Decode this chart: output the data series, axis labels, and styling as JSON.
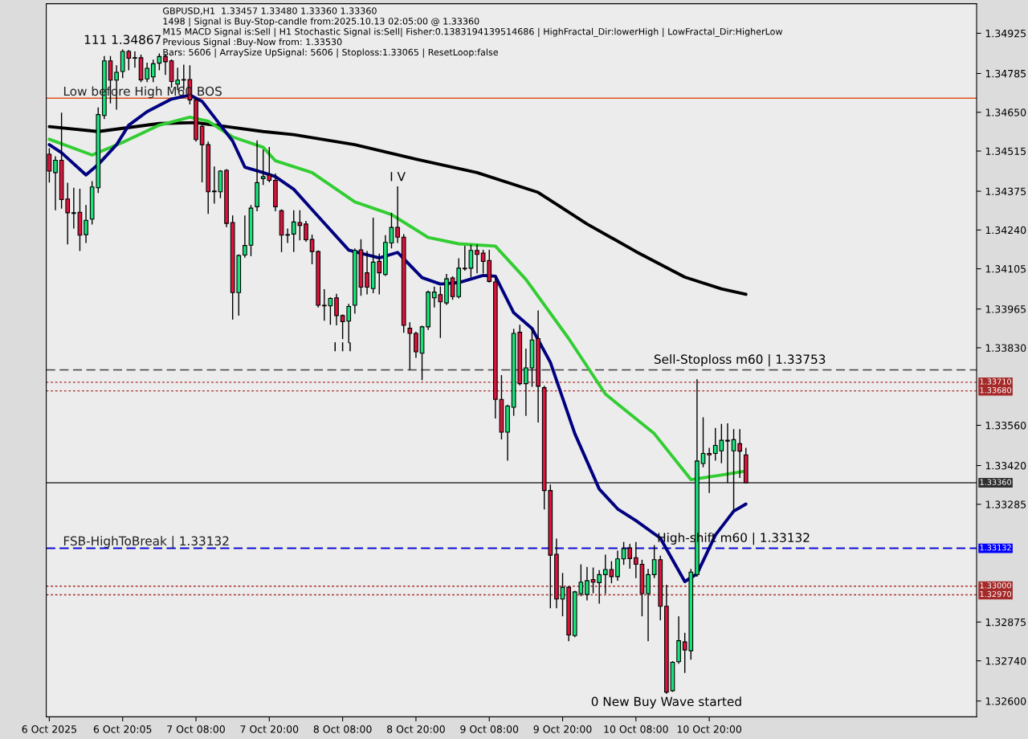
{
  "chart_data": {
    "type": "candlestick",
    "x": [
      "2025-10-06T08:00",
      "2025-10-06T09:00",
      "2025-10-06T10:00",
      "2025-10-06T11:00",
      "2025-10-06T12:00",
      "2025-10-06T13:00",
      "2025-10-06T14:00",
      "2025-10-06T15:00",
      "2025-10-06T16:00",
      "2025-10-06T17:00",
      "2025-10-06T18:00",
      "2025-10-06T19:00",
      "2025-10-06T20:00",
      "2025-10-06T21:00",
      "2025-10-06T22:00",
      "2025-10-06T23:00",
      "2025-10-07T00:00",
      "2025-10-07T01:00",
      "2025-10-07T02:00",
      "2025-10-07T03:00",
      "2025-10-07T04:00",
      "2025-10-07T05:00",
      "2025-10-07T06:00",
      "2025-10-07T07:00",
      "2025-10-07T08:00",
      "2025-10-07T09:00",
      "2025-10-07T10:00",
      "2025-10-07T11:00",
      "2025-10-07T12:00",
      "2025-10-07T13:00",
      "2025-10-07T14:00",
      "2025-10-07T15:00",
      "2025-10-07T16:00",
      "2025-10-07T17:00",
      "2025-10-07T18:00",
      "2025-10-07T19:00",
      "2025-10-07T20:00",
      "2025-10-07T21:00",
      "2025-10-07T22:00",
      "2025-10-07T23:00",
      "2025-10-08T00:00",
      "2025-10-08T01:00",
      "2025-10-08T02:00",
      "2025-10-08T03:00",
      "2025-10-08T04:00",
      "2025-10-08T05:00",
      "2025-10-08T06:00",
      "2025-10-08T07:00",
      "2025-10-08T08:00",
      "2025-10-08T09:00",
      "2025-10-08T10:00",
      "2025-10-08T11:00",
      "2025-10-08T12:00",
      "2025-10-08T13:00",
      "2025-10-08T14:00",
      "2025-10-08T15:00",
      "2025-10-08T16:00",
      "2025-10-08T17:00",
      "2025-10-08T18:00",
      "2025-10-08T19:00",
      "2025-10-08T20:00",
      "2025-10-08T21:00",
      "2025-10-08T22:00",
      "2025-10-08T23:00",
      "2025-10-09T00:00",
      "2025-10-09T01:00",
      "2025-10-09T02:00",
      "2025-10-09T03:00",
      "2025-10-09T04:00",
      "2025-10-09T05:00",
      "2025-10-09T06:00",
      "2025-10-09T07:00",
      "2025-10-09T08:00",
      "2025-10-09T09:00",
      "2025-10-09T10:00",
      "2025-10-09T11:00",
      "2025-10-09T12:00",
      "2025-10-09T13:00",
      "2025-10-09T14:00",
      "2025-10-09T15:00",
      "2025-10-09T16:00",
      "2025-10-09T17:00",
      "2025-10-09T18:00",
      "2025-10-09T19:00",
      "2025-10-09T20:00",
      "2025-10-09T21:00",
      "2025-10-09T22:00",
      "2025-10-09T23:00",
      "2025-10-10T00:00",
      "2025-10-10T01:00",
      "2025-10-10T02:00",
      "2025-10-10T03:00",
      "2025-10-10T04:00",
      "2025-10-10T05:00",
      "2025-10-10T06:00",
      "2025-10-10T07:00",
      "2025-10-10T08:00",
      "2025-10-10T09:00",
      "2025-10-10T10:00",
      "2025-10-10T11:00",
      "2025-10-10T12:00",
      "2025-10-10T13:00",
      "2025-10-10T14:00",
      "2025-10-10T15:00",
      "2025-10-10T16:00",
      "2025-10-10T17:00",
      "2025-10-10T18:00",
      "2025-10-10T19:00",
      "2025-10-10T20:00",
      "2025-10-10T21:00",
      "2025-10-10T22:00",
      "2025-10-10T23:00",
      "2025-10-11T00:00",
      "2025-10-11T01:00",
      "2025-10-11T02:00"
    ],
    "ohlc": [
      [
        1.34504,
        1.34523,
        1.34407,
        1.34445
      ],
      [
        1.3444,
        1.34495,
        1.34311,
        1.34483
      ],
      [
        1.34483,
        1.34647,
        1.34316,
        1.34346
      ],
      [
        1.34348,
        1.34403,
        1.34192,
        1.343
      ],
      [
        1.343,
        1.34385,
        1.34247,
        1.34298
      ],
      [
        1.34302,
        1.34382,
        1.34169,
        1.34222
      ],
      [
        1.34224,
        1.34325,
        1.34197,
        1.34274
      ],
      [
        1.34278,
        1.34408,
        1.34261,
        1.3439
      ],
      [
        1.34387,
        1.34665,
        1.34371,
        1.34642
      ],
      [
        1.34639,
        1.34844,
        1.34628,
        1.34829
      ],
      [
        1.34829,
        1.34844,
        1.34683,
        1.34762
      ],
      [
        1.34762,
        1.34812,
        1.34661,
        1.34789
      ],
      [
        1.34792,
        1.34867,
        1.34771,
        1.34862
      ],
      [
        1.34862,
        1.34865,
        1.34798,
        1.34838
      ],
      [
        1.34838,
        1.3486,
        1.34807,
        1.3484
      ],
      [
        1.3484,
        1.34849,
        1.34757,
        1.34763
      ],
      [
        1.34766,
        1.34821,
        1.34757,
        1.34803
      ],
      [
        1.34773,
        1.34831,
        1.34757,
        1.34819
      ],
      [
        1.34821,
        1.34853,
        1.34798,
        1.34844
      ],
      [
        1.34844,
        1.34851,
        1.34782,
        1.34826
      ],
      [
        1.34829,
        1.34832,
        1.34738,
        1.34757
      ],
      [
        1.34748,
        1.34803,
        1.34729,
        1.34762
      ],
      [
        1.34762,
        1.34814,
        1.34729,
        1.34764
      ],
      [
        1.34764,
        1.34812,
        1.34679,
        1.34693
      ],
      [
        1.34693,
        1.34697,
        1.3455,
        1.34555
      ],
      [
        1.34601,
        1.3461,
        1.34408,
        1.34537
      ],
      [
        1.34537,
        1.34546,
        1.34298,
        1.34373
      ],
      [
        1.34373,
        1.34459,
        1.34334,
        1.34376
      ],
      [
        1.34373,
        1.34447,
        1.34353,
        1.34445
      ],
      [
        1.34448,
        1.3445,
        1.34252,
        1.34263
      ],
      [
        1.34266,
        1.34289,
        1.3393,
        1.34022
      ],
      [
        1.34022,
        1.34153,
        1.33944,
        1.34151
      ],
      [
        1.34153,
        1.34289,
        1.34146,
        1.34186
      ],
      [
        1.34187,
        1.34325,
        1.34151,
        1.34316
      ],
      [
        1.34321,
        1.3455,
        1.34307,
        1.34405
      ],
      [
        1.34419,
        1.34518,
        1.34399,
        1.34426
      ],
      [
        1.34431,
        1.34527,
        1.34408,
        1.34413
      ],
      [
        1.34413,
        1.34435,
        1.34307,
        1.34321
      ],
      [
        1.34307,
        1.3431,
        1.34165,
        1.34222
      ],
      [
        1.34222,
        1.34243,
        1.34197,
        1.34224
      ],
      [
        1.34226,
        1.34307,
        1.34165,
        1.34268
      ],
      [
        1.34266,
        1.34307,
        1.34206,
        1.34256
      ],
      [
        1.34261,
        1.3427,
        1.34201,
        1.34206
      ],
      [
        1.34207,
        1.34222,
        1.34123,
        1.34165
      ],
      [
        1.34165,
        1.34167,
        1.33972,
        1.33978
      ],
      [
        1.33978,
        1.34032,
        1.33926,
        1.33976
      ],
      [
        1.33976,
        1.34004,
        1.33912,
        1.34002
      ],
      [
        1.34004,
        1.34016,
        1.3391,
        1.33942
      ],
      [
        1.33942,
        1.33944,
        1.33862,
        1.33921
      ],
      [
        1.33923,
        1.33981,
        1.33848,
        1.33974
      ],
      [
        1.33978,
        1.34174,
        1.33951,
        1.34169
      ],
      [
        1.34171,
        1.34206,
        1.34013,
        1.34041
      ],
      [
        1.34091,
        1.34165,
        1.34018,
        1.34041
      ],
      [
        1.34036,
        1.34281,
        1.34022,
        1.34128
      ],
      [
        1.34131,
        1.34156,
        1.34018,
        1.34091
      ],
      [
        1.34085,
        1.3422,
        1.34082,
        1.34197
      ],
      [
        1.34195,
        1.34298,
        1.34178,
        1.34249
      ],
      [
        1.34249,
        1.3439,
        1.34197,
        1.34215
      ],
      [
        1.34215,
        1.34224,
        1.33884,
        1.33908
      ],
      [
        1.33898,
        1.33917,
        1.33756,
        1.3388
      ],
      [
        1.3388,
        1.33884,
        1.33797,
        1.33816
      ],
      [
        1.33811,
        1.33905,
        1.33719,
        1.33903
      ],
      [
        1.33903,
        1.34027,
        1.33894,
        1.34024
      ],
      [
        1.34004,
        1.34041,
        1.33972,
        1.34024
      ],
      [
        1.34015,
        1.34041,
        1.33866,
        1.3399
      ],
      [
        1.33986,
        1.34085,
        1.33981,
        1.3407
      ],
      [
        1.34073,
        1.34077,
        1.33999,
        1.34008
      ],
      [
        1.34008,
        1.3414,
        1.34004,
        1.34107
      ],
      [
        1.34107,
        1.34183,
        1.341,
        1.34105
      ],
      [
        1.34107,
        1.34187,
        1.34077,
        1.34169
      ],
      [
        1.34169,
        1.34187,
        1.34091,
        1.34155
      ],
      [
        1.3416,
        1.34169,
        1.34091,
        1.34131
      ],
      [
        1.34134,
        1.34169,
        1.34059,
        1.34061
      ],
      [
        1.34059,
        1.34077,
        1.33586,
        1.3365
      ],
      [
        1.3365,
        1.33733,
        1.33513,
        1.33536
      ],
      [
        1.33536,
        1.3363,
        1.33439,
        1.33627
      ],
      [
        1.33623,
        1.33894,
        1.33595,
        1.3388
      ],
      [
        1.33884,
        1.33908,
        1.33701,
        1.33705
      ],
      [
        1.33705,
        1.33825,
        1.33595,
        1.3376
      ],
      [
        1.3376,
        1.33894,
        1.33696,
        1.33857
      ],
      [
        1.33862,
        1.33958,
        1.33572,
        1.33696
      ],
      [
        1.33691,
        1.33696,
        1.33269,
        1.33333
      ],
      [
        1.33333,
        1.33352,
        1.32925,
        1.33108
      ],
      [
        1.33111,
        1.33164,
        1.32925,
        1.32955
      ],
      [
        1.32955,
        1.33044,
        1.32897,
        1.32996
      ],
      [
        1.32996,
        1.32998,
        1.3281,
        1.3283
      ],
      [
        1.32828,
        1.32982,
        1.32824,
        1.3298
      ],
      [
        1.32974,
        1.33074,
        1.32967,
        1.33014
      ],
      [
        1.32971,
        1.33065,
        1.32952,
        1.33019
      ],
      [
        1.33023,
        1.33063,
        1.32977,
        1.33014
      ],
      [
        1.33012,
        1.33054,
        1.32941,
        1.3304
      ],
      [
        1.3304,
        1.33108,
        1.32975,
        1.33058
      ],
      [
        1.33058,
        1.33085,
        1.33012,
        1.33033
      ],
      [
        1.33033,
        1.33122,
        1.33021,
        1.33095
      ],
      [
        1.33095,
        1.33152,
        1.33076,
        1.33131
      ],
      [
        1.33133,
        1.33145,
        1.33063,
        1.33096
      ],
      [
        1.33099,
        1.33152,
        1.3303,
        1.33076
      ],
      [
        1.33076,
        1.3309,
        1.32897,
        1.32974
      ],
      [
        1.32974,
        1.33058,
        1.3281,
        1.3304
      ],
      [
        1.3304,
        1.33141,
        1.3303,
        1.33092
      ],
      [
        1.33092,
        1.33104,
        1.32883,
        1.3293
      ],
      [
        1.3293,
        1.33003,
        1.32627,
        1.32631
      ],
      [
        1.32636,
        1.32737,
        1.32634,
        1.32735
      ],
      [
        1.32737,
        1.32893,
        1.32732,
        1.3281
      ],
      [
        1.32806,
        1.32836,
        1.327,
        1.32778
      ],
      [
        1.32775,
        1.33058,
        1.32746,
        1.33049
      ],
      [
        1.3304,
        1.33719,
        1.33035,
        1.33436
      ],
      [
        1.33427,
        1.33586,
        1.33416,
        1.33462
      ],
      [
        1.33462,
        1.3348,
        1.33326,
        1.33457
      ],
      [
        1.33462,
        1.33549,
        1.33439,
        1.3349
      ],
      [
        1.33471,
        1.33563,
        1.3343,
        1.33508
      ],
      [
        1.33508,
        1.33565,
        1.33361,
        1.33505
      ],
      [
        1.33471,
        1.33545,
        1.33265,
        1.3351
      ],
      [
        1.33496,
        1.33545,
        1.33379,
        1.3347
      ],
      [
        1.33457,
        1.3348,
        1.3336,
        1.3336
      ]
    ],
    "series": [
      {
        "type": "line",
        "color": "#000000",
        "x": [
          "2025-10-06T08:00",
          "2025-10-06T16:00",
          "2025-10-07T02:00",
          "2025-10-07T08:00",
          "2025-10-07T13:00",
          "2025-10-07T19:00",
          "2025-10-08T00:00",
          "2025-10-08T10:00",
          "2025-10-08T20:00",
          "2025-10-09T06:00",
          "2025-10-09T16:00",
          "2025-10-10T00:00",
          "2025-10-10T08:00",
          "2025-10-10T16:00",
          "2025-10-10T22:00",
          "2025-10-11T02:00"
        ],
        "values": [
          1.346,
          1.34583,
          1.34611,
          1.34614,
          1.346,
          1.34583,
          1.34572,
          1.34537,
          1.34487,
          1.3444,
          1.34371,
          1.34261,
          1.34165,
          1.34076,
          1.34035,
          1.34016
        ]
      },
      {
        "type": "line",
        "color": "#32cd32",
        "x": [
          "2025-10-06T08:00",
          "2025-10-06T15:00",
          "2025-10-06T20:00",
          "2025-10-07T02:00",
          "2025-10-07T07:00",
          "2025-10-07T10:00",
          "2025-10-07T14:00",
          "2025-10-07T19:00",
          "2025-10-07T21:00",
          "2025-10-08T03:00",
          "2025-10-08T10:00",
          "2025-10-08T16:00",
          "2025-10-08T22:00",
          "2025-10-09T03:00",
          "2025-10-09T09:00",
          "2025-10-09T14:00",
          "2025-10-09T21:00",
          "2025-10-10T03:00",
          "2025-10-10T11:00",
          "2025-10-10T17:00",
          "2025-10-10T22:00",
          "2025-10-11T02:00"
        ],
        "values": [
          1.34556,
          1.34501,
          1.34545,
          1.34605,
          1.34633,
          1.34619,
          1.34564,
          1.34528,
          1.34481,
          1.3444,
          1.34338,
          1.34294,
          1.34214,
          1.34192,
          1.34184,
          1.34068,
          1.33862,
          1.33669,
          1.33531,
          1.33371,
          1.33387,
          1.33401
        ]
      },
      {
        "type": "line",
        "color": "#000080",
        "x": [
          "2025-10-06T08:00",
          "2025-10-06T10:00",
          "2025-10-06T14:00",
          "2025-10-06T16:00",
          "2025-10-06T19:00",
          "2025-10-06T21:00",
          "2025-10-07T00:00",
          "2025-10-07T04:00",
          "2025-10-07T07:00",
          "2025-10-07T09:00",
          "2025-10-07T11:00",
          "2025-10-07T14:00",
          "2025-10-07T16:00",
          "2025-10-07T19:00",
          "2025-10-07T21:00",
          "2025-10-08T00:00",
          "2025-10-08T03:00",
          "2025-10-08T09:00",
          "2025-10-08T14:00",
          "2025-10-08T17:00",
          "2025-10-08T21:00",
          "2025-10-09T00:00",
          "2025-10-09T03:00",
          "2025-10-09T07:00",
          "2025-10-09T09:00",
          "2025-10-09T12:00",
          "2025-10-09T15:00",
          "2025-10-09T18:00",
          "2025-10-09T22:00",
          "2025-10-10T02:00",
          "2025-10-10T05:00",
          "2025-10-10T08:00",
          "2025-10-10T12:00",
          "2025-10-10T16:00",
          "2025-10-10T18:00",
          "2025-10-10T21:00",
          "2025-10-11T00:00",
          "2025-10-11T02:00"
        ],
        "values": [
          1.34537,
          1.34509,
          1.34432,
          1.34468,
          1.34537,
          1.34605,
          1.34652,
          1.34696,
          1.3471,
          1.34688,
          1.34633,
          1.3455,
          1.34459,
          1.3444,
          1.34426,
          1.34382,
          1.34311,
          1.3417,
          1.34143,
          1.34162,
          1.34074,
          1.34052,
          1.34057,
          1.34082,
          1.34079,
          1.33952,
          1.33897,
          1.33779,
          1.33531,
          1.33338,
          1.33269,
          1.33228,
          1.33167,
          1.33016,
          1.33043,
          1.33178,
          1.33261,
          1.33286
        ]
      }
    ],
    "xlim": [
      "2025-10-06T07:30",
      "2025-10-12T15:45"
    ],
    "xticks": [
      {
        "value": "2025-10-06T08:00",
        "label": "6 Oct 2025"
      },
      {
        "value": "2025-10-06T20:00",
        "label": "6 Oct 20:05"
      },
      {
        "value": "2025-10-07T08:00",
        "label": "7 Oct 08:00"
      },
      {
        "value": "2025-10-07T20:00",
        "label": "7 Oct 20:00"
      },
      {
        "value": "2025-10-08T08:00",
        "label": "8 Oct 08:00"
      },
      {
        "value": "2025-10-08T20:00",
        "label": "8 Oct 20:00"
      },
      {
        "value": "2025-10-09T08:00",
        "label": "9 Oct 08:00"
      },
      {
        "value": "2025-10-09T20:00",
        "label": "9 Oct 20:00"
      },
      {
        "value": "2025-10-10T08:00",
        "label": "10 Oct 08:00"
      },
      {
        "value": "2025-10-10T20:00",
        "label": "10 Oct 20:00"
      }
    ],
    "ylim": [
      1.32545,
      1.35028
    ],
    "yticks": [
      1.34925,
      1.34785,
      {
        "value": 1.3465,
        "label": "1.34650"
      },
      1.34515,
      1.34375,
      {
        "value": 1.3424,
        "label": "1.34240"
      },
      1.34105,
      1.33965,
      {
        "value": 1.3383,
        "label": "1.33830"
      },
      {
        "value": 1.3356,
        "label": "1.33560"
      },
      {
        "value": 1.3342,
        "label": "1.33420"
      },
      1.33285,
      1.32875,
      {
        "value": 1.3274,
        "label": "1.32740"
      },
      {
        "value": 1.326,
        "label": "1.32600"
      }
    ],
    "ref_lines": [
      {
        "axis": "y",
        "value": 1.34699,
        "label": "Low before High M60 BOS",
        "color": "#e05020",
        "line_style": "solid"
      },
      {
        "axis": "y",
        "value": 1.33753,
        "color": "#404040",
        "line_style": "dashed"
      },
      {
        "axis": "y",
        "value": 1.3371,
        "label": "1.33710",
        "color": "#a52a2a",
        "line_style": "dotted"
      },
      {
        "axis": "y",
        "value": 1.3368,
        "label": "1.33680",
        "color": "#a52a2a",
        "line_style": "dotted"
      },
      {
        "axis": "y",
        "value": 1.3336,
        "label": "1.33360",
        "color": "#303030",
        "line_style": "solid"
      },
      {
        "axis": "y",
        "value": 1.33132,
        "label": "FSB-HighToBreak | 1.33132",
        "color": "#000000",
        "line_style": "dashed"
      },
      {
        "axis": "y",
        "value": 1.33132,
        "label": "1.33132",
        "color": "#0000ff",
        "line_style": "dashed"
      },
      {
        "axis": "y",
        "value": 1.33,
        "label": "1.33000",
        "color": "#a52a2a",
        "line_style": "dotted"
      },
      {
        "axis": "y",
        "value": 1.3297,
        "label": "1.32970",
        "color": "#a52a2a",
        "line_style": "dotted"
      }
    ],
    "annotations": [
      "GBPUSD,H1  1.33457 1.33480 1.33360 1.33360",
      "1498 | Signal is Buy-Stop-candle from:2025.10.13 02:05:00 @ 1.33360",
      "M15 MACD Signal is:Sell | H1 Stochastic Signal is:Sell| Fisher:0.1383194139514686 | HighFractal_Dir:lowerHigh | LowFractal_Dir:HigherLow",
      "Previous Signal :Buy-Now from: 1.33530",
      "Bars: 5606 | ArraySize UpSignal: 5606 | Stoploss:1.33065 | ResetLoop:false",
      {
        "text": "111 1.34867",
        "x": "2025-10-06T20:00",
        "y": 1.34867
      },
      {
        "text": "I V",
        "x": "2025-10-08T17:00",
        "y": 1.3439
      },
      {
        "text": "I I I",
        "x": "2025-10-08T08:00",
        "y": 1.33862
      },
      {
        "text": "Sell-Stoploss m60 | 1.33753",
        "x": "2025-10-11T01:00",
        "y": 1.33753
      },
      {
        "text": "High-shift m60 | 1.33132",
        "x": "2025-10-11T00:00",
        "y": 1.33132
      },
      {
        "text": "0 New Buy Wave started",
        "x": "2025-10-10T13:00",
        "y": 1.32627
      }
    ],
    "grid": false,
    "legend": false
  }
}
